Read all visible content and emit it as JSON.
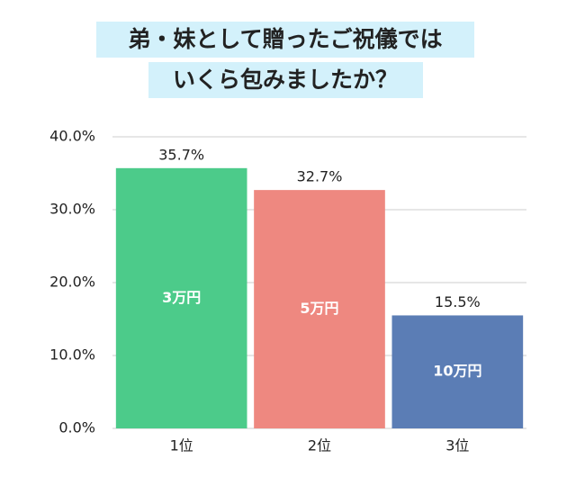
{
  "chart_data": {
    "type": "bar",
    "title": [
      "弟・妹として贈ったご祝儀では",
      "いくら包みましたか？"
    ],
    "categories": [
      "1位",
      "2位",
      "3位"
    ],
    "values": [
      35.7,
      32.7,
      15.5
    ],
    "value_labels": [
      "35.7%",
      "32.7%",
      "15.5%"
    ],
    "bar_labels": [
      "3万円",
      "5万円",
      "10万円"
    ],
    "colors": [
      "#4ccb8a",
      "#ee8880",
      "#5b7db5"
    ],
    "ylim": [
      0,
      40
    ],
    "yticks": [
      {
        "value": 0,
        "label": "0.0%"
      },
      {
        "value": 10,
        "label": "10.0%"
      },
      {
        "value": 20,
        "label": "20.0%"
      },
      {
        "value": 30,
        "label": "30.0%"
      },
      {
        "value": 40,
        "label": "40.0%"
      }
    ],
    "grid": true
  }
}
